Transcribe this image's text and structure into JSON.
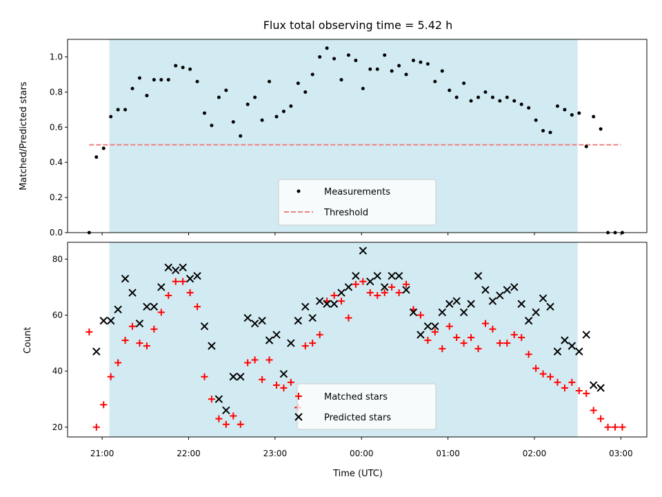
{
  "colors": {
    "shade": "#add8e6",
    "measurement": "#000000",
    "threshold": "#f08080",
    "matched": "#ff0000",
    "predicted": "#000000"
  },
  "chart_data": [
    {
      "type": "scatter",
      "title": "Flux total observing time = 5.42 h",
      "ylabel": "Matched/Predicted stars",
      "xlabel": "",
      "xlim": [
        "20:36",
        "03:18"
      ],
      "ylim": [
        0,
        1.1
      ],
      "yticks": [
        0.0,
        0.2,
        0.4,
        0.6,
        0.8,
        1.0
      ],
      "ytick_labels": [
        "0.0",
        "0.2",
        "0.4",
        "0.6",
        "0.8",
        "1.0"
      ],
      "shaded_span": [
        "21:05",
        "02:30"
      ],
      "legend": {
        "position": "lower center",
        "entries": [
          "Measurements",
          "Threshold"
        ]
      },
      "threshold": {
        "name": "Threshold",
        "y": 0.5,
        "x_range": [
          "20:51",
          "03:00"
        ]
      },
      "series": [
        {
          "name": "Measurements",
          "marker": "dot",
          "x": [
            "20:51",
            "20:56",
            "21:01",
            "21:06",
            "21:11",
            "21:16",
            "21:21",
            "21:26",
            "21:31",
            "21:36",
            "21:41",
            "21:46",
            "21:51",
            "21:56",
            "22:01",
            "22:06",
            "22:11",
            "22:16",
            "22:21",
            "22:26",
            "22:31",
            "22:36",
            "22:41",
            "22:46",
            "22:51",
            "22:56",
            "23:01",
            "23:06",
            "23:11",
            "23:16",
            "23:21",
            "23:26",
            "23:31",
            "23:36",
            "23:41",
            "23:46",
            "23:51",
            "23:56",
            "00:01",
            "00:06",
            "00:11",
            "00:16",
            "00:21",
            "00:26",
            "00:31",
            "00:36",
            "00:41",
            "00:46",
            "00:51",
            "00:56",
            "01:01",
            "01:06",
            "01:11",
            "01:16",
            "01:21",
            "01:26",
            "01:31",
            "01:36",
            "01:41",
            "01:46",
            "01:51",
            "01:56",
            "02:01",
            "02:06",
            "02:11",
            "02:16",
            "02:21",
            "02:26",
            "02:31",
            "02:36",
            "02:41",
            "02:46",
            "02:51",
            "02:56",
            "03:01"
          ],
          "y": [
            0.0,
            0.43,
            0.48,
            0.66,
            0.7,
            0.7,
            0.82,
            0.88,
            0.78,
            0.87,
            0.87,
            0.87,
            0.95,
            0.94,
            0.93,
            0.86,
            0.68,
            0.61,
            0.77,
            0.81,
            0.63,
            0.55,
            0.73,
            0.77,
            0.64,
            0.86,
            0.66,
            0.69,
            0.72,
            0.85,
            0.8,
            0.9,
            1.0,
            1.05,
            0.99,
            0.87,
            1.01,
            0.98,
            0.82,
            0.93,
            0.93,
            1.01,
            0.92,
            0.95,
            0.9,
            0.98,
            0.97,
            0.96,
            0.86,
            0.92,
            0.81,
            0.77,
            0.85,
            0.75,
            0.77,
            0.8,
            0.77,
            0.75,
            0.77,
            0.75,
            0.73,
            0.71,
            0.64,
            0.58,
            0.57,
            0.72,
            0.7,
            0.67,
            0.68,
            0.49,
            0.66,
            0.59,
            0.0,
            0.0,
            0.0
          ]
        }
      ]
    },
    {
      "type": "scatter",
      "title": "",
      "ylabel": "Count",
      "xlabel": "Time (UTC)",
      "xlim": [
        "20:36",
        "03:18"
      ],
      "ylim": [
        16.5,
        86
      ],
      "yticks": [
        20,
        40,
        60,
        80
      ],
      "ytick_labels": [
        "20",
        "40",
        "60",
        "80"
      ],
      "xticks": [
        "21:00",
        "22:00",
        "23:00",
        "00:00",
        "01:00",
        "02:00",
        "03:00"
      ],
      "shaded_span": [
        "21:05",
        "02:30"
      ],
      "legend": {
        "position": "lower center",
        "entries": [
          "Matched stars",
          "Predicted stars"
        ]
      },
      "series": [
        {
          "name": "Matched stars",
          "marker": "plus",
          "x": [
            "20:51",
            "20:56",
            "21:01",
            "21:06",
            "21:11",
            "21:16",
            "21:21",
            "21:26",
            "21:31",
            "21:36",
            "21:41",
            "21:46",
            "21:51",
            "21:56",
            "22:01",
            "22:06",
            "22:11",
            "22:16",
            "22:21",
            "22:26",
            "22:31",
            "22:36",
            "22:41",
            "22:46",
            "22:51",
            "22:56",
            "23:01",
            "23:06",
            "23:11",
            "23:16",
            "23:21",
            "23:26",
            "23:31",
            "23:36",
            "23:41",
            "23:46",
            "23:51",
            "23:56",
            "00:01",
            "00:06",
            "00:11",
            "00:16",
            "00:21",
            "00:26",
            "00:31",
            "00:36",
            "00:41",
            "00:46",
            "00:51",
            "00:56",
            "01:01",
            "01:06",
            "01:11",
            "01:16",
            "01:21",
            "01:26",
            "01:31",
            "01:36",
            "01:41",
            "01:46",
            "01:51",
            "01:56",
            "02:01",
            "02:06",
            "02:11",
            "02:16",
            "02:21",
            "02:26",
            "02:31",
            "02:36",
            "02:41",
            "02:46",
            "02:51",
            "02:56",
            "03:01"
          ],
          "y": [
            54,
            20,
            28,
            38,
            43,
            51,
            56,
            50,
            49,
            55,
            61,
            67,
            72,
            72,
            68,
            63,
            38,
            30,
            23,
            21,
            24,
            21,
            43,
            44,
            37,
            44,
            35,
            34,
            36,
            27,
            49,
            50,
            53,
            65,
            67,
            65,
            59,
            71,
            72,
            68,
            67,
            68,
            70,
            68,
            71,
            62,
            60,
            51,
            54,
            48,
            56,
            52,
            50,
            52,
            48,
            57,
            55,
            50,
            50,
            53,
            52,
            46,
            41,
            39,
            38,
            36,
            34,
            36,
            33,
            32,
            26,
            23,
            20,
            20,
            20
          ]
        },
        {
          "name": "Predicted stars",
          "marker": "x",
          "x": [
            "20:56",
            "21:01",
            "21:06",
            "21:11",
            "21:16",
            "21:21",
            "21:26",
            "21:31",
            "21:36",
            "21:41",
            "21:46",
            "21:51",
            "21:56",
            "22:01",
            "22:06",
            "22:11",
            "22:16",
            "22:21",
            "22:26",
            "22:31",
            "22:36",
            "22:41",
            "22:46",
            "22:51",
            "22:56",
            "23:01",
            "23:06",
            "23:11",
            "23:16",
            "23:21",
            "23:26",
            "23:31",
            "23:36",
            "23:41",
            "23:46",
            "23:51",
            "23:56",
            "00:01",
            "00:06",
            "00:11",
            "00:16",
            "00:21",
            "00:26",
            "00:31",
            "00:36",
            "00:41",
            "00:46",
            "00:51",
            "00:56",
            "01:01",
            "01:06",
            "01:11",
            "01:16",
            "01:21",
            "01:26",
            "01:31",
            "01:36",
            "01:41",
            "01:46",
            "01:51",
            "01:56",
            "02:01",
            "02:06",
            "02:11",
            "02:16",
            "02:21",
            "02:26",
            "02:31",
            "02:36",
            "02:41",
            "02:46"
          ],
          "y": [
            47,
            58,
            58,
            62,
            73,
            68,
            57,
            63,
            63,
            70,
            77,
            76,
            77,
            73,
            74,
            56,
            49,
            30,
            26,
            38,
            38,
            59,
            57,
            58,
            51,
            53,
            39,
            50,
            58,
            63,
            59,
            65,
            64,
            64,
            68,
            70,
            74,
            83,
            72,
            74,
            70,
            74,
            74,
            69,
            61,
            53,
            56,
            56,
            61,
            64,
            65,
            61,
            64,
            74,
            69,
            65,
            67,
            69,
            70,
            64,
            58,
            61,
            66,
            63,
            47,
            51,
            49,
            47,
            53,
            35,
            34
          ]
        }
      ]
    }
  ]
}
